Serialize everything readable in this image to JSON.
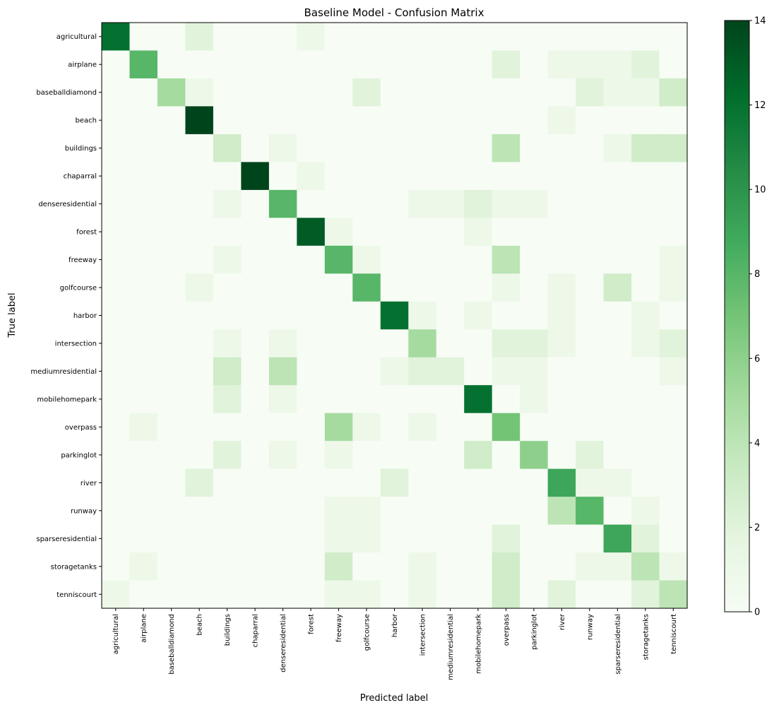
{
  "chart_data": {
    "type": "heatmap",
    "title": "Baseline Model - Confusion Matrix",
    "xlabel": "Predicted label",
    "ylabel": "True label",
    "colormap": "Greens",
    "color_low": "#f7fcf5",
    "color_high": "#00441b",
    "vmin": 0,
    "vmax": 14,
    "colorbar_ticks": [
      0,
      2,
      4,
      6,
      8,
      10,
      12,
      14
    ],
    "labels": [
      "agricultural",
      "airplane",
      "baseballdiamond",
      "beach",
      "buildings",
      "chaparral",
      "denseresidential",
      "forest",
      "freeway",
      "golfcourse",
      "harbor",
      "intersection",
      "mediumresidential",
      "mobilehomepark",
      "overpass",
      "parkinglot",
      "river",
      "runway",
      "sparseresidential",
      "storagetanks",
      "tenniscourt"
    ],
    "matrix": [
      [
        12,
        0,
        0,
        2,
        0,
        0,
        0,
        1,
        0,
        0,
        0,
        0,
        0,
        0,
        0,
        0,
        0,
        0,
        0,
        0,
        0
      ],
      [
        0,
        8,
        0,
        0,
        0,
        0,
        0,
        0,
        0,
        0,
        0,
        0,
        0,
        0,
        2,
        0,
        1,
        1,
        1,
        2,
        0
      ],
      [
        0,
        0,
        5,
        1,
        0,
        0,
        0,
        0,
        0,
        2,
        0,
        0,
        0,
        0,
        0,
        0,
        0,
        2,
        1,
        1,
        3
      ],
      [
        0,
        0,
        0,
        14,
        0,
        0,
        0,
        0,
        0,
        0,
        0,
        0,
        0,
        0,
        0,
        0,
        1,
        0,
        0,
        0,
        0
      ],
      [
        0,
        0,
        0,
        0,
        3,
        0,
        1,
        0,
        0,
        0,
        0,
        0,
        0,
        0,
        4,
        0,
        0,
        0,
        1,
        3,
        3
      ],
      [
        0,
        0,
        0,
        0,
        0,
        14,
        0,
        1,
        0,
        0,
        0,
        0,
        0,
        0,
        0,
        0,
        0,
        0,
        0,
        0,
        0
      ],
      [
        0,
        0,
        0,
        0,
        1,
        0,
        8,
        0,
        0,
        0,
        0,
        1,
        1,
        2,
        1,
        1,
        0,
        0,
        0,
        0,
        0
      ],
      [
        0,
        0,
        0,
        0,
        0,
        0,
        0,
        13,
        1,
        0,
        0,
        0,
        0,
        1,
        0,
        0,
        0,
        0,
        0,
        0,
        0
      ],
      [
        0,
        0,
        0,
        0,
        1,
        0,
        0,
        0,
        8,
        1,
        0,
        0,
        0,
        0,
        4,
        0,
        0,
        0,
        0,
        0,
        1
      ],
      [
        0,
        0,
        0,
        1,
        0,
        0,
        0,
        0,
        0,
        8,
        0,
        0,
        0,
        0,
        1,
        0,
        1,
        0,
        3,
        0,
        1
      ],
      [
        0,
        0,
        0,
        0,
        0,
        0,
        0,
        0,
        0,
        0,
        12,
        1,
        0,
        1,
        0,
        0,
        1,
        0,
        0,
        1,
        0
      ],
      [
        0,
        0,
        0,
        0,
        1,
        0,
        1,
        0,
        0,
        0,
        0,
        5,
        0,
        0,
        2,
        2,
        1,
        0,
        0,
        1,
        2
      ],
      [
        0,
        0,
        0,
        0,
        3,
        0,
        4,
        0,
        0,
        0,
        1,
        2,
        2,
        0,
        1,
        1,
        0,
        0,
        0,
        0,
        1
      ],
      [
        0,
        0,
        0,
        0,
        2,
        0,
        1,
        0,
        0,
        0,
        0,
        0,
        0,
        12,
        0,
        1,
        0,
        0,
        0,
        0,
        0
      ],
      [
        0,
        1,
        0,
        0,
        0,
        0,
        0,
        0,
        5,
        1,
        0,
        1,
        0,
        0,
        7,
        0,
        0,
        0,
        0,
        0,
        0
      ],
      [
        0,
        0,
        0,
        0,
        2,
        0,
        1,
        0,
        1,
        0,
        0,
        0,
        0,
        3,
        0,
        6,
        0,
        2,
        0,
        0,
        0
      ],
      [
        0,
        0,
        0,
        2,
        0,
        0,
        0,
        0,
        0,
        0,
        2,
        0,
        0,
        0,
        0,
        0,
        9,
        1,
        1,
        0,
        0
      ],
      [
        0,
        0,
        0,
        0,
        0,
        0,
        0,
        0,
        1,
        1,
        0,
        0,
        0,
        0,
        0,
        0,
        4,
        8,
        0,
        1,
        0
      ],
      [
        0,
        0,
        0,
        0,
        0,
        0,
        0,
        0,
        1,
        1,
        0,
        0,
        0,
        0,
        2,
        0,
        0,
        0,
        9,
        2,
        0
      ],
      [
        0,
        1,
        0,
        0,
        0,
        0,
        0,
        0,
        3,
        0,
        0,
        1,
        0,
        0,
        3,
        0,
        0,
        1,
        1,
        4,
        1
      ],
      [
        1,
        0,
        0,
        0,
        0,
        0,
        0,
        0,
        1,
        1,
        0,
        1,
        0,
        0,
        3,
        0,
        2,
        0,
        0,
        2,
        4
      ]
    ]
  }
}
